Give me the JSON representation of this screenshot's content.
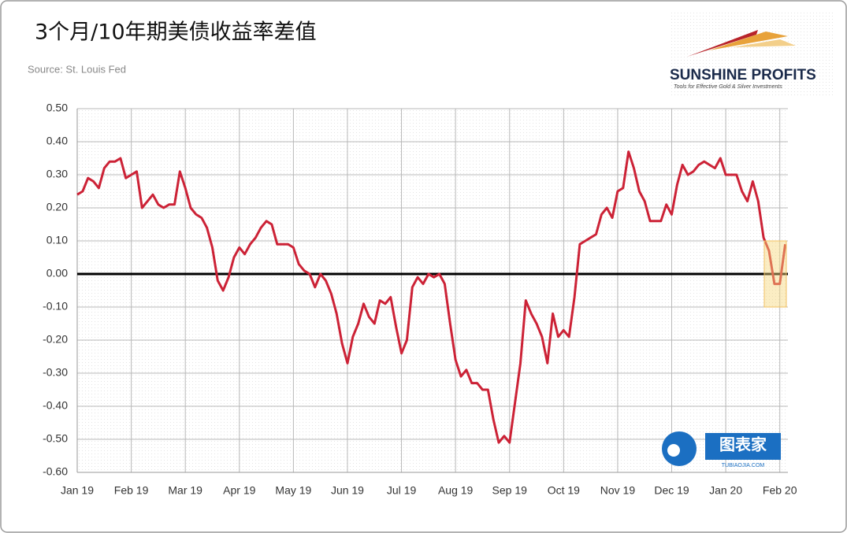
{
  "chart_data": {
    "type": "line",
    "title": "3个月/10年期美债收益率差值",
    "subtitle": "Source: St. Louis Fed",
    "brand": {
      "name": "SUNSHINE PROFITS",
      "tagline": "Tools for Effective Gold & Silver Investments"
    },
    "watermark": {
      "name": "图表家",
      "site": "TUBIAOJIA.COM"
    },
    "color": "#cc2236",
    "x": [
      0,
      0.1,
      0.2,
      0.3,
      0.4,
      0.5,
      0.6,
      0.7,
      0.8,
      0.9,
      1,
      1.1,
      1.2,
      1.3,
      1.4,
      1.5,
      1.6,
      1.7,
      1.8,
      1.9,
      2,
      2.1,
      2.2,
      2.3,
      2.4,
      2.5,
      2.6,
      2.7,
      2.8,
      2.9,
      3,
      3.1,
      3.2,
      3.3,
      3.4,
      3.5,
      3.6,
      3.7,
      3.8,
      3.9,
      4,
      4.1,
      4.2,
      4.3,
      4.4,
      4.5,
      4.6,
      4.7,
      4.8,
      4.9,
      5,
      5.1,
      5.2,
      5.3,
      5.4,
      5.5,
      5.6,
      5.7,
      5.8,
      5.9,
      6,
      6.1,
      6.2,
      6.3,
      6.4,
      6.5,
      6.6,
      6.7,
      6.8,
      6.9,
      7,
      7.1,
      7.2,
      7.3,
      7.4,
      7.5,
      7.6,
      7.7,
      7.8,
      7.9,
      8,
      8.1,
      8.2,
      8.3,
      8.4,
      8.5,
      8.6,
      8.7,
      8.8,
      8.9,
      9,
      9.1,
      9.2,
      9.3,
      9.4,
      9.5,
      9.6,
      9.7,
      9.8,
      9.9,
      10,
      10.1,
      10.2,
      10.3,
      10.4,
      10.5,
      10.6,
      10.7,
      10.8,
      10.9,
      11,
      11.1,
      11.2,
      11.3,
      11.4,
      11.5,
      11.6,
      11.7,
      11.8,
      11.9,
      12,
      12.1,
      12.2,
      12.3,
      12.4,
      12.5,
      12.6,
      12.7,
      12.8,
      12.9,
      13,
      13.1
    ],
    "values": [
      0.24,
      0.25,
      0.29,
      0.28,
      0.26,
      0.32,
      0.34,
      0.34,
      0.35,
      0.29,
      0.3,
      0.31,
      0.2,
      0.22,
      0.24,
      0.21,
      0.2,
      0.21,
      0.21,
      0.31,
      0.26,
      0.2,
      0.18,
      0.17,
      0.14,
      0.08,
      -0.02,
      -0.05,
      -0.01,
      0.05,
      0.08,
      0.06,
      0.09,
      0.11,
      0.14,
      0.16,
      0.15,
      0.09,
      0.09,
      0.09,
      0.08,
      0.03,
      0.01,
      0.0,
      -0.04,
      0.0,
      -0.02,
      -0.06,
      -0.12,
      -0.21,
      -0.27,
      -0.19,
      -0.15,
      -0.09,
      -0.13,
      -0.15,
      -0.08,
      -0.09,
      -0.07,
      -0.16,
      -0.24,
      -0.2,
      -0.04,
      -0.01,
      -0.03,
      0.0,
      -0.01,
      0.0,
      -0.03,
      -0.15,
      -0.26,
      -0.31,
      -0.29,
      -0.33,
      -0.33,
      -0.35,
      -0.35,
      -0.44,
      -0.51,
      -0.49,
      -0.51,
      -0.39,
      -0.27,
      -0.08,
      -0.12,
      -0.15,
      -0.19,
      -0.27,
      -0.12,
      -0.19,
      -0.17,
      -0.19,
      -0.07,
      0.09,
      0.1,
      0.11,
      0.12,
      0.18,
      0.2,
      0.17,
      0.25,
      0.26,
      0.37,
      0.32,
      0.25,
      0.22,
      0.16,
      0.16,
      0.16,
      0.21,
      0.18,
      0.27,
      0.33,
      0.3,
      0.31,
      0.33,
      0.34,
      0.33,
      0.32,
      0.35,
      0.3,
      0.3,
      0.3,
      0.25,
      0.22,
      0.28,
      0.22,
      0.11,
      0.07,
      -0.03,
      -0.03,
      0.09
    ],
    "xlim": [
      0,
      13.15
    ],
    "xticks": [
      {
        "value": 0,
        "label": "Jan 19"
      },
      {
        "value": 1,
        "label": "Feb 19"
      },
      {
        "value": 2,
        "label": "Mar 19"
      },
      {
        "value": 3,
        "label": "Apr 19"
      },
      {
        "value": 4,
        "label": "May 19"
      },
      {
        "value": 5,
        "label": "Jun 19"
      },
      {
        "value": 6,
        "label": "Jul 19"
      },
      {
        "value": 7,
        "label": "Aug 19"
      },
      {
        "value": 8,
        "label": "Sep 19"
      },
      {
        "value": 9,
        "label": "Oct 19"
      },
      {
        "value": 10,
        "label": "Nov 19"
      },
      {
        "value": 11,
        "label": "Dec 19"
      },
      {
        "value": 12,
        "label": "Jan 20"
      },
      {
        "value": 13,
        "label": "Feb 20"
      }
    ],
    "ylim": [
      -0.6,
      0.5
    ],
    "yticks": [
      {
        "value": 0.5,
        "label": "0.50"
      },
      {
        "value": 0.4,
        "label": "0.40"
      },
      {
        "value": 0.3,
        "label": "0.30"
      },
      {
        "value": 0.2,
        "label": "0.20"
      },
      {
        "value": 0.1,
        "label": "0.10"
      },
      {
        "value": 0,
        "label": "0.00"
      },
      {
        "value": -0.1,
        "label": "-0.10"
      },
      {
        "value": -0.2,
        "label": "-0.20"
      },
      {
        "value": -0.3,
        "label": "-0.30"
      },
      {
        "value": -0.4,
        "label": "-0.40"
      },
      {
        "value": -0.5,
        "label": "-0.50"
      },
      {
        "value": -0.6,
        "label": "-0.60"
      }
    ],
    "grid": true
  }
}
